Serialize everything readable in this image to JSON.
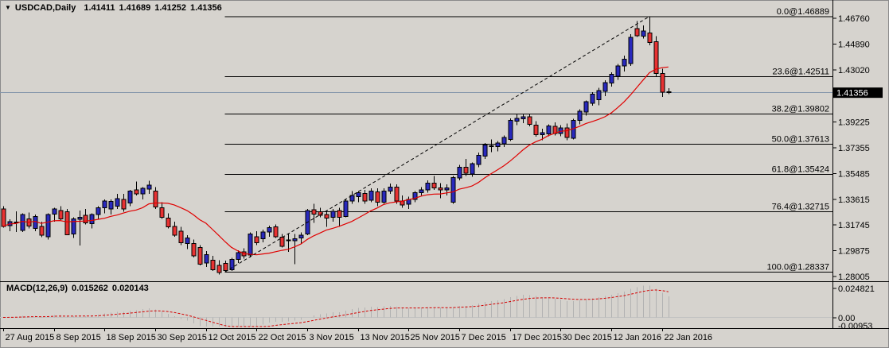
{
  "header": {
    "collapse_icon": "▼",
    "symbol": "USDCAD,Daily",
    "open": "1.41411",
    "high": "1.41689",
    "low": "1.41252",
    "close": "1.41356"
  },
  "macd_panel": {
    "label": "MACD(12,26,9)",
    "macd_value": "0.015262",
    "signal_value": "0.020143"
  },
  "colors": {
    "background": "#d6d3ce",
    "bull_candle": "#2929bd",
    "bear_candle": "#e83232",
    "wick": "#000000",
    "ma_line": "#e00000",
    "macd_signal": "#d40000",
    "macd_histogram": "#b2b2b2",
    "macd_zero_line": "#c2c2c2",
    "fib_line": "#000000",
    "trendline": "#000000",
    "current_price_line": "#8495aa",
    "price_box_bg": "#000000",
    "price_box_text": "#ffffff",
    "axis_text": "#000000",
    "separator": "#000000"
  },
  "chart_data": {
    "type": "candlestick",
    "title": "USDCAD Daily with Fibonacci retracement and MACD(12,26,9)",
    "price_axis_ticks": [
      "1.46760",
      "1.44890",
      "1.43020",
      "1.39225",
      "1.37355",
      "1.35485",
      "1.33615",
      "1.31745",
      "1.29875",
      "1.28005"
    ],
    "current_price": "1.41356",
    "macd_axis_ticks": [
      "0.024821",
      "0.00",
      "-0.00953"
    ],
    "time_axis": [
      {
        "index": 0,
        "label": "27 Aug 2015"
      },
      {
        "index": 8,
        "label": "8 Sep 2015"
      },
      {
        "index": 16,
        "label": "18 Sep 2015"
      },
      {
        "index": 24,
        "label": "30 Sep 2015"
      },
      {
        "index": 32,
        "label": "12 Oct 2015"
      },
      {
        "index": 40,
        "label": "22 Oct 2015"
      },
      {
        "index": 48,
        "label": "3 Nov 2015"
      },
      {
        "index": 56,
        "label": "13 Nov 2015"
      },
      {
        "index": 64,
        "label": "25 Nov 2015"
      },
      {
        "index": 72,
        "label": "7 Dec 2015"
      },
      {
        "index": 80,
        "label": "17 Dec 2015"
      },
      {
        "index": 88,
        "label": "30 Dec 2015"
      },
      {
        "index": 96,
        "label": "12 Jan 2016"
      },
      {
        "index": 104,
        "label": "22 Jan 2016"
      }
    ],
    "fibonacci": [
      {
        "label": "0.0@1.46889",
        "price": 1.46889
      },
      {
        "label": "23.6@1.42511",
        "price": 1.42511
      },
      {
        "label": "38.2@1.39802",
        "price": 1.39802
      },
      {
        "label": "50.0@1.37613",
        "price": 1.37613
      },
      {
        "label": "61.8@1.35424",
        "price": 1.35424
      },
      {
        "label": "76.4@1.32715",
        "price": 1.32715
      },
      {
        "label": "100.0@1.28337",
        "price": 1.28337
      }
    ],
    "trendline": {
      "from_index": 35,
      "from_price": 1.28337,
      "to_index": 102,
      "to_price": 1.46889
    },
    "ma_period": 13,
    "macd_params": [
      12,
      26,
      9
    ],
    "candles": [
      [
        1.329,
        1.331,
        1.3155,
        1.3165
      ],
      [
        1.317,
        1.3215,
        1.313,
        1.32
      ],
      [
        1.3195,
        1.3275,
        1.3125,
        1.319
      ],
      [
        1.3135,
        1.326,
        1.3125,
        1.325
      ],
      [
        1.322,
        1.3265,
        1.315,
        1.3168
      ],
      [
        1.315,
        1.325,
        1.313,
        1.3235
      ],
      [
        1.3165,
        1.32,
        1.3085,
        1.31
      ],
      [
        1.309,
        1.326,
        1.307,
        1.325
      ],
      [
        1.3255,
        1.33,
        1.32,
        1.329
      ],
      [
        1.328,
        1.331,
        1.321,
        1.322
      ],
      [
        1.327,
        1.329,
        1.31,
        1.3105
      ],
      [
        1.311,
        1.323,
        1.308,
        1.322
      ],
      [
        1.3215,
        1.328,
        1.3025,
        1.323
      ],
      [
        1.3245,
        1.329,
        1.318,
        1.319
      ],
      [
        1.3185,
        1.326,
        1.315,
        1.325
      ],
      [
        1.325,
        1.331,
        1.322,
        1.33
      ],
      [
        1.33,
        1.336,
        1.326,
        1.335
      ],
      [
        1.329,
        1.336,
        1.325,
        1.3345
      ],
      [
        1.331,
        1.34,
        1.329,
        1.3365
      ],
      [
        1.336,
        1.34,
        1.327,
        1.329
      ],
      [
        1.3335,
        1.343,
        1.331,
        1.342
      ],
      [
        1.343,
        1.349,
        1.339,
        1.34
      ],
      [
        1.34,
        1.345,
        1.336,
        1.344
      ],
      [
        1.3435,
        1.3495,
        1.34,
        1.3465
      ],
      [
        1.342,
        1.345,
        1.329,
        1.3305
      ],
      [
        1.33,
        1.334,
        1.322,
        1.323
      ],
      [
        1.3225,
        1.326,
        1.315,
        1.316
      ],
      [
        1.3165,
        1.32,
        1.309,
        1.31
      ],
      [
        1.313,
        1.316,
        1.303,
        1.3045
      ],
      [
        1.304,
        1.31,
        1.3,
        1.308
      ],
      [
        1.304,
        1.307,
        1.294,
        1.295
      ],
      [
        1.301,
        1.303,
        1.288,
        1.289
      ],
      [
        1.29,
        1.2985,
        1.287,
        1.296
      ],
      [
        1.292,
        1.295,
        1.284,
        1.285
      ],
      [
        1.288,
        1.292,
        1.2815,
        1.283
      ],
      [
        1.2895,
        1.2915,
        1.28337,
        1.2845
      ],
      [
        1.285,
        1.2935,
        1.284,
        1.2925
      ],
      [
        1.2925,
        1.299,
        1.29,
        1.2975
      ],
      [
        1.298,
        1.3005,
        1.293,
        1.295
      ],
      [
        1.2955,
        1.312,
        1.294,
        1.311
      ],
      [
        1.309,
        1.313,
        1.303,
        1.3045
      ],
      [
        1.3075,
        1.314,
        1.305,
        1.3125
      ],
      [
        1.3125,
        1.317,
        1.309,
        1.3155
      ],
      [
        1.316,
        1.318,
        1.308,
        1.309
      ],
      [
        1.3085,
        1.311,
        1.301,
        1.302
      ],
      [
        1.306,
        1.311,
        1.298,
        1.3065
      ],
      [
        1.306,
        1.311,
        1.289,
        1.3075
      ],
      [
        1.308,
        1.312,
        1.304,
        1.31
      ],
      [
        1.311,
        1.329,
        1.31,
        1.328
      ],
      [
        1.3285,
        1.333,
        1.319,
        1.3255
      ],
      [
        1.327,
        1.33,
        1.323,
        1.3245
      ],
      [
        1.325,
        1.328,
        1.316,
        1.3225
      ],
      [
        1.323,
        1.329,
        1.32,
        1.3275
      ],
      [
        1.328,
        1.33,
        1.316,
        1.323
      ],
      [
        1.3235,
        1.336,
        1.323,
        1.335
      ],
      [
        1.335,
        1.342,
        1.333,
        1.339
      ],
      [
        1.338,
        1.342,
        1.334,
        1.341
      ],
      [
        1.3405,
        1.343,
        1.333,
        1.335
      ],
      [
        1.3355,
        1.344,
        1.334,
        1.342
      ],
      [
        1.3415,
        1.344,
        1.331,
        1.334
      ],
      [
        1.334,
        1.344,
        1.333,
        1.342
      ],
      [
        1.342,
        1.3475,
        1.34,
        1.345
      ],
      [
        1.345,
        1.347,
        1.333,
        1.335
      ],
      [
        1.335,
        1.339,
        1.33,
        1.332
      ],
      [
        1.3325,
        1.338,
        1.329,
        1.336
      ],
      [
        1.336,
        1.342,
        1.334,
        1.341
      ],
      [
        1.341,
        1.345,
        1.339,
        1.343
      ],
      [
        1.343,
        1.35,
        1.341,
        1.348
      ],
      [
        1.348,
        1.353,
        1.343,
        1.3445
      ],
      [
        1.3445,
        1.348,
        1.337,
        1.343
      ],
      [
        1.343,
        1.347,
        1.339,
        1.3445
      ],
      [
        1.334,
        1.353,
        1.333,
        1.352
      ],
      [
        1.3515,
        1.361,
        1.35,
        1.3595
      ],
      [
        1.3595,
        1.3655,
        1.353,
        1.355
      ],
      [
        1.3545,
        1.363,
        1.3525,
        1.362
      ],
      [
        1.3615,
        1.37,
        1.3595,
        1.368
      ],
      [
        1.3675,
        1.377,
        1.3655,
        1.3755
      ],
      [
        1.375,
        1.3795,
        1.3705,
        1.3745
      ],
      [
        1.3745,
        1.3785,
        1.371,
        1.377
      ],
      [
        1.3765,
        1.3825,
        1.374,
        1.381
      ],
      [
        1.3795,
        1.395,
        1.3785,
        1.3935
      ],
      [
        1.393,
        1.398,
        1.39,
        1.395
      ],
      [
        1.3945,
        1.398,
        1.3915,
        1.396
      ],
      [
        1.396,
        1.3985,
        1.389,
        1.3905
      ],
      [
        1.39,
        1.393,
        1.3815,
        1.383
      ],
      [
        1.383,
        1.3875,
        1.379,
        1.3845
      ],
      [
        1.3835,
        1.3905,
        1.382,
        1.3895
      ],
      [
        1.389,
        1.392,
        1.3825,
        1.384
      ],
      [
        1.384,
        1.39,
        1.382,
        1.388
      ],
      [
        1.388,
        1.391,
        1.379,
        1.381
      ],
      [
        1.3805,
        1.3945,
        1.3795,
        1.3935
      ],
      [
        1.3935,
        1.4015,
        1.3905,
        1.4
      ],
      [
        1.3995,
        1.408,
        1.397,
        1.407
      ],
      [
        1.406,
        1.414,
        1.404,
        1.4125
      ],
      [
        1.4085,
        1.417,
        1.4045,
        1.415
      ],
      [
        1.4145,
        1.4225,
        1.411,
        1.421
      ],
      [
        1.4205,
        1.4285,
        1.418,
        1.427
      ],
      [
        1.4255,
        1.4345,
        1.423,
        1.433
      ],
      [
        1.433,
        1.4405,
        1.429,
        1.438
      ],
      [
        1.4347,
        1.456,
        1.433,
        1.4537
      ],
      [
        1.46,
        1.4655,
        1.454,
        1.455
      ],
      [
        1.4545,
        1.4625,
        1.453,
        1.4585
      ],
      [
        1.457,
        1.46889,
        1.448,
        1.45
      ],
      [
        1.4505,
        1.4545,
        1.4255,
        1.4275
      ],
      [
        1.4275,
        1.431,
        1.4105,
        1.414
      ],
      [
        1.41411,
        1.41689,
        1.41252,
        1.41356
      ]
    ]
  }
}
